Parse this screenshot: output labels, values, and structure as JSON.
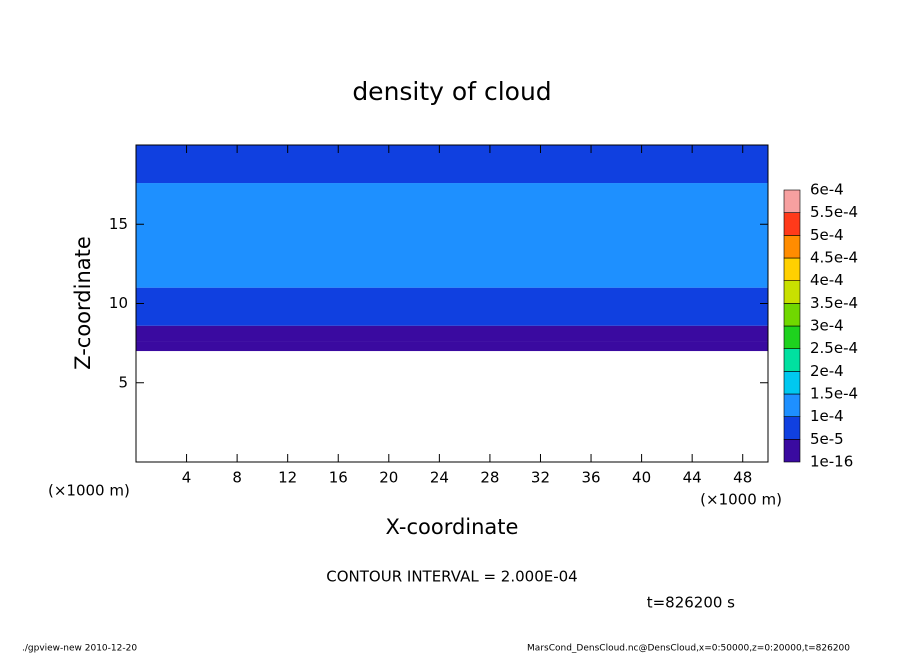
{
  "chart_data": {
    "type": "contour",
    "title": "density of cloud",
    "x_label": "X-coordinate",
    "y_label": "Z-coordinate",
    "x_unit": "(×1000 m)",
    "y_unit": "(×1000 m)",
    "xlim": [
      0,
      50
    ],
    "xticks": [
      4,
      8,
      12,
      16,
      20,
      24,
      28,
      32,
      36,
      40,
      44,
      48
    ],
    "ylim": [
      0,
      20
    ],
    "yticks": [
      5,
      10,
      15
    ],
    "layers": [
      {
        "z": [
          7.0,
          7.6
        ],
        "value": 1e-05
      },
      {
        "z": [
          7.6,
          8.6
        ],
        "value": 3e-05
      },
      {
        "z": [
          8.6,
          11.0
        ],
        "value": 8e-05
      },
      {
        "z": [
          11.0,
          17.6
        ],
        "value": 0.00012
      },
      {
        "z": [
          17.6,
          20.0
        ],
        "value": 8e-05
      }
    ],
    "colorbar": {
      "levels": [
        1e-16,
        {
          "value": 5e-05,
          "label": "5e-5"
        },
        {
          "value": 0.0001,
          "label": "1e-4"
        },
        {
          "value": 0.00015,
          "label": "1.5e-4"
        },
        {
          "value": 0.0002,
          "label": "2e-4"
        },
        {
          "value": 0.00025,
          "label": "2.5e-4"
        },
        {
          "value": 0.0003,
          "label": "3e-4"
        },
        {
          "value": 0.00035,
          "label": "3.5e-4"
        },
        {
          "value": 0.0004,
          "label": "4e-4"
        },
        {
          "value": 0.00045,
          "label": "4.5e-4"
        },
        {
          "value": 0.0005,
          "label": "5e-4"
        },
        {
          "value": 0.00055,
          "label": "5.5e-4"
        },
        {
          "value": 0.0006,
          "label": "6e-4"
        }
      ],
      "colors": [
        "#3a0aa0",
        "#1040e0",
        "#1e90ff",
        "#00c8f0",
        "#00e0a0",
        "#1ed21e",
        "#70d800",
        "#c8e000",
        "#ffd000",
        "#ff8c00",
        "#ff3a1a",
        "#f7a0a0"
      ]
    },
    "annotation": "CONTOUR INTERVAL = 2.000E-04",
    "time_label": "t=826200 s",
    "footer_left": "./gpview-new  2010-12-20",
    "footer_right": "MarsCond_DensCloud.nc@DensCloud,x=0:50000,z=0:20000,t=826200"
  }
}
